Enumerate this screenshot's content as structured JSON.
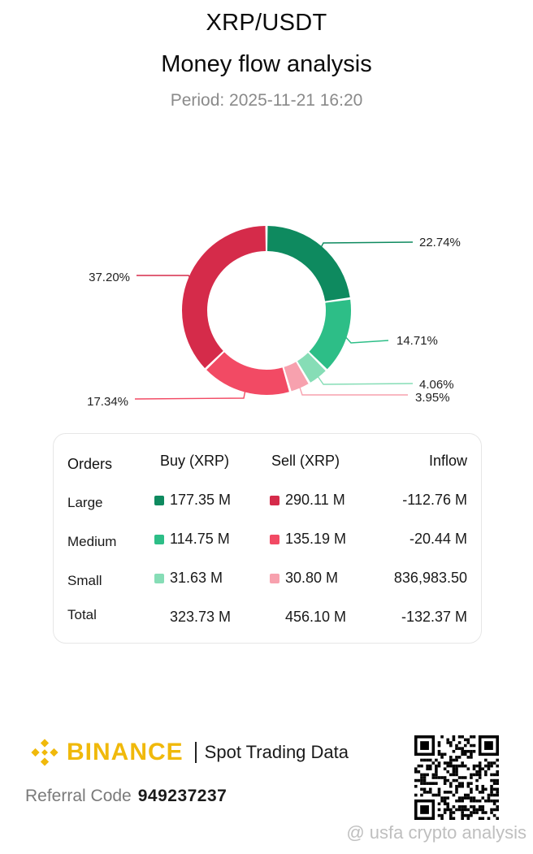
{
  "header": {
    "pair": "XRP/USDT",
    "title": "Money flow analysis",
    "period": "Period: 2025-11-21 16:20"
  },
  "colors": {
    "large_buy": "#0E8A5F",
    "medium_buy": "#2DBE87",
    "small_buy": "#86DDB6",
    "large_sell": "#D52B4A",
    "medium_sell": "#F24A64",
    "small_sell": "#F7A1AE",
    "brand": "#F0B90B"
  },
  "chart_data": {
    "type": "pie",
    "slices": [
      {
        "segment": "Large buy",
        "value": 22.74,
        "label": "22.74%",
        "color": "#0E8A5F"
      },
      {
        "segment": "Medium buy",
        "value": 14.71,
        "label": "14.71%",
        "color": "#2DBE87"
      },
      {
        "segment": "Small buy",
        "value": 4.06,
        "label": "4.06%",
        "color": "#86DDB6"
      },
      {
        "segment": "Small sell",
        "value": 3.95,
        "label": "3.95%",
        "color": "#F7A1AE"
      },
      {
        "segment": "Medium sell",
        "value": 17.34,
        "label": "17.34%",
        "color": "#F24A64"
      },
      {
        "segment": "Large sell",
        "value": 37.2,
        "label": "37.20%",
        "color": "#D52B4A"
      }
    ]
  },
  "table": {
    "headers": {
      "orders": "Orders",
      "buy": "Buy (XRP)",
      "sell": "Sell (XRP)",
      "inflow": "Inflow"
    },
    "rows": [
      {
        "label": "Large",
        "buy": "177.35 M",
        "sell": "290.11 M",
        "inflow": "-112.76 M"
      },
      {
        "label": "Medium",
        "buy": "114.75 M",
        "sell": "135.19 M",
        "inflow": "-20.44 M"
      },
      {
        "label": "Small",
        "buy": "31.63 M",
        "sell": "30.80 M",
        "inflow": "836,983.50"
      },
      {
        "label": "Total",
        "buy": "323.73 M",
        "sell": "456.10 M",
        "inflow": "-132.37 M"
      }
    ]
  },
  "footer": {
    "brand": "BINANCE",
    "tagline": "Spot Trading Data",
    "referral_label": "Referral Code",
    "referral_code": "949237237",
    "watermark": "@ usfa crypto analysis",
    "logo_icon": "binance-diamond-icon",
    "qr_icon": "qr-code-icon"
  }
}
